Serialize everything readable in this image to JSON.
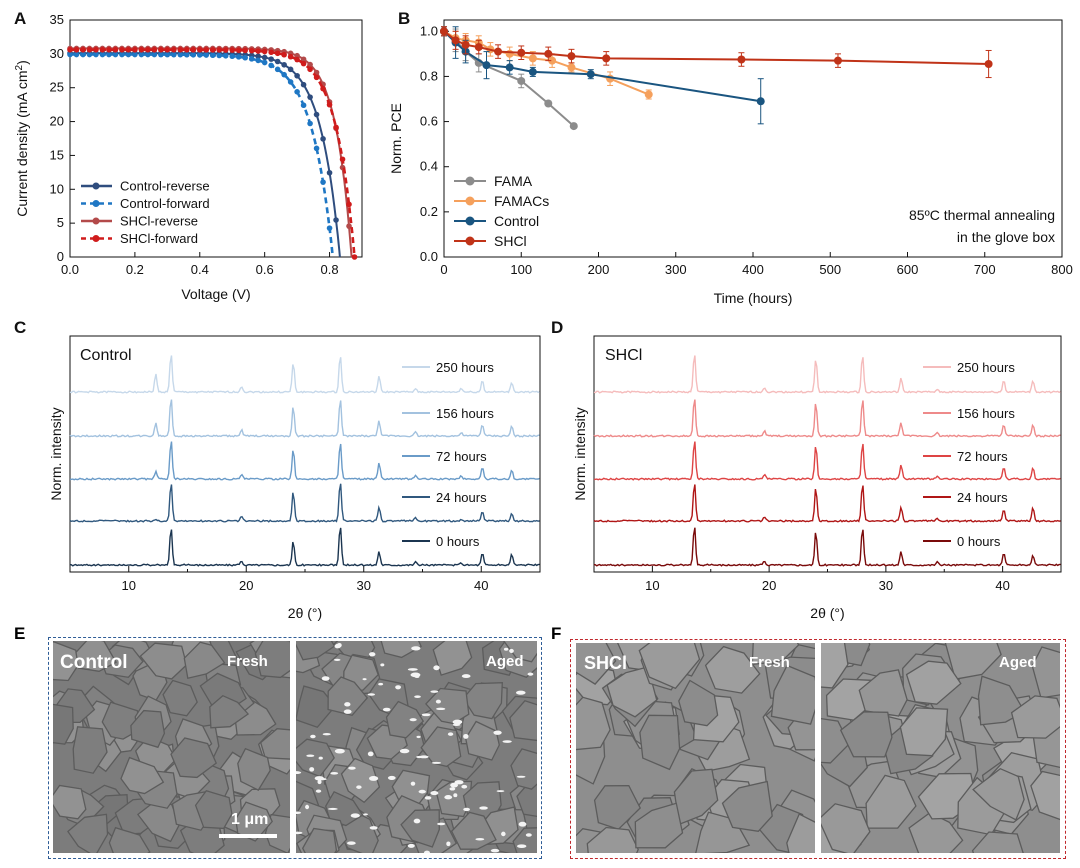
{
  "panels": {
    "A": "A",
    "B": "B",
    "C": "C",
    "D": "D",
    "E": "E",
    "F": "F"
  },
  "chart_data": [
    {
      "id": "A",
      "type": "line",
      "xlabel": "Voltage (V)",
      "ylabel": "Current density (mA cm",
      "ylabel_sup": "2",
      "ylabel_end": ")",
      "xlim": [
        0.0,
        0.9
      ],
      "ylim": [
        0,
        35
      ],
      "xticks": [
        "0.0",
        "0.2",
        "0.4",
        "0.6",
        "0.8"
      ],
      "yticks": [
        "0",
        "5",
        "10",
        "15",
        "20",
        "25",
        "30",
        "35"
      ],
      "legend_position": "bottom-left",
      "series": [
        {
          "name": "Control-reverse",
          "color": "#2f4d7e",
          "dash": false,
          "jsc": 30.1,
          "voc": 0.832,
          "n": 0.06
        },
        {
          "name": "Control-forward",
          "color": "#1f77c4",
          "dash": true,
          "jsc": 29.9,
          "voc": 0.81,
          "n": 0.065
        },
        {
          "name": "SHCl-reverse",
          "color": "#b34a4a",
          "dash": false,
          "jsc": 30.8,
          "voc": 0.868,
          "n": 0.05
        },
        {
          "name": "SHCl-forward",
          "color": "#d01c1c",
          "dash": true,
          "jsc": 30.6,
          "voc": 0.877,
          "n": 0.058
        }
      ]
    },
    {
      "id": "B",
      "type": "line",
      "xlabel": "Time (hours)",
      "ylabel": "Norm. PCE",
      "xlim": [
        0,
        800
      ],
      "ylim": [
        0.0,
        1.05
      ],
      "xticks": [
        "0",
        "100",
        "200",
        "300",
        "400",
        "500",
        "600",
        "700",
        "800"
      ],
      "yticks": [
        "0.0",
        "0.2",
        "0.4",
        "0.6",
        "0.8",
        "1.0"
      ],
      "annotation": [
        "85ºC thermal annealing",
        "in the glove box"
      ],
      "legend_position": "bottom-left",
      "series": [
        {
          "name": "FAMA",
          "color": "#8c8c8c",
          "x": [
            0,
            15,
            28,
            45,
            100,
            135,
            168
          ],
          "y": [
            1.0,
            0.96,
            0.91,
            0.86,
            0.78,
            0.68,
            0.58
          ],
          "err": [
            0.02,
            0.05,
            0.04,
            0.04,
            0.03,
            0,
            0
          ]
        },
        {
          "name": "FAMACs",
          "color": "#f5a05c",
          "x": [
            0,
            15,
            28,
            45,
            60,
            85,
            115,
            140,
            165,
            215,
            265
          ],
          "y": [
            1.0,
            0.97,
            0.96,
            0.95,
            0.92,
            0.9,
            0.88,
            0.87,
            0.84,
            0.79,
            0.72
          ],
          "err": [
            0.02,
            0.03,
            0.03,
            0.03,
            0.03,
            0.03,
            0.03,
            0.03,
            0.02,
            0.03,
            0.02
          ]
        },
        {
          "name": "Control",
          "color": "#1a5580",
          "x": [
            0,
            15,
            28,
            55,
            85,
            115,
            190,
            410
          ],
          "y": [
            1.0,
            0.95,
            0.91,
            0.85,
            0.84,
            0.82,
            0.81,
            0.69
          ],
          "err": [
            0.02,
            0.07,
            0.05,
            0.06,
            0.03,
            0.02,
            0.02,
            0.1
          ]
        },
        {
          "name": "SHCl",
          "color": "#c03318",
          "x": [
            0,
            15,
            28,
            45,
            70,
            100,
            135,
            165,
            210,
            385,
            510,
            705
          ],
          "y": [
            1.0,
            0.96,
            0.94,
            0.93,
            0.91,
            0.905,
            0.9,
            0.89,
            0.88,
            0.875,
            0.87,
            0.855
          ],
          "err": [
            0.02,
            0.04,
            0.04,
            0.03,
            0.03,
            0.03,
            0.03,
            0.03,
            0.03,
            0.03,
            0.03,
            0.06
          ]
        }
      ]
    },
    {
      "id": "C",
      "type": "line",
      "title": "Control",
      "xlabel": "2θ (°)",
      "ylabel": "Norm. intensity",
      "xlim": [
        5,
        45
      ],
      "xticks": [
        "10",
        "20",
        "30",
        "40"
      ],
      "peaks": [
        12.3,
        13.6,
        19.6,
        24.0,
        28.0,
        31.3,
        34.4,
        38.3,
        40.1,
        42.6
      ],
      "series": [
        {
          "name": "250 hours",
          "color": "#c6d8ea",
          "heights": [
            0.45,
            1,
            0.15,
            0.75,
            0.95,
            0.4,
            0.1,
            0.1,
            0.3,
            0.25
          ]
        },
        {
          "name": "156 hours",
          "color": "#a3c2df",
          "heights": [
            0.35,
            1,
            0.15,
            0.75,
            0.95,
            0.4,
            0.1,
            0.1,
            0.3,
            0.25
          ]
        },
        {
          "name": "72 hours",
          "color": "#6a9bc8",
          "heights": [
            0.2,
            1,
            0.12,
            0.75,
            0.95,
            0.4,
            0.1,
            0.08,
            0.3,
            0.22
          ]
        },
        {
          "name": "24 hours",
          "color": "#30587e",
          "heights": [
            0.05,
            1,
            0.12,
            0.75,
            1.0,
            0.35,
            0.1,
            0.05,
            0.25,
            0.2
          ]
        },
        {
          "name": "0 hours",
          "color": "#1b3550",
          "heights": [
            0.0,
            0.95,
            0.1,
            0.6,
            1.0,
            0.35,
            0.08,
            0.05,
            0.3,
            0.28
          ]
        }
      ]
    },
    {
      "id": "D",
      "type": "line",
      "title": "SHCl",
      "xlabel": "2θ (°)",
      "ylabel": "Norm. intensity",
      "xlim": [
        5,
        45
      ],
      "xticks": [
        "10",
        "20",
        "30",
        "40"
      ],
      "peaks": [
        13.6,
        19.6,
        24.0,
        28.0,
        31.3,
        34.4,
        40.1,
        42.6
      ],
      "series": [
        {
          "name": "250 hours",
          "color": "#f5bcbc",
          "heights": [
            1,
            0.12,
            0.85,
            0.95,
            0.35,
            0.08,
            0.3,
            0.3
          ]
        },
        {
          "name": "156 hours",
          "color": "#ee8a8a",
          "heights": [
            1,
            0.12,
            0.85,
            0.95,
            0.35,
            0.08,
            0.3,
            0.28
          ]
        },
        {
          "name": "72 hours",
          "color": "#de4444",
          "heights": [
            1,
            0.12,
            0.85,
            0.95,
            0.35,
            0.08,
            0.3,
            0.28
          ]
        },
        {
          "name": "24 hours",
          "color": "#b01616",
          "heights": [
            1,
            0.1,
            0.85,
            0.95,
            0.35,
            0.08,
            0.3,
            0.35
          ]
        },
        {
          "name": "0 hours",
          "color": "#7a0a0a",
          "heights": [
            1,
            0.1,
            0.85,
            0.95,
            0.35,
            0.08,
            0.3,
            0.25
          ]
        }
      ]
    }
  ],
  "sem": {
    "E": {
      "label": "Control",
      "fresh": "Fresh",
      "aged": "Aged",
      "scalebar": "1 μm",
      "border": "#2f5d97"
    },
    "F": {
      "label": "SHCl",
      "fresh": "Fresh",
      "aged": "Aged",
      "border": "#c0282d"
    }
  }
}
